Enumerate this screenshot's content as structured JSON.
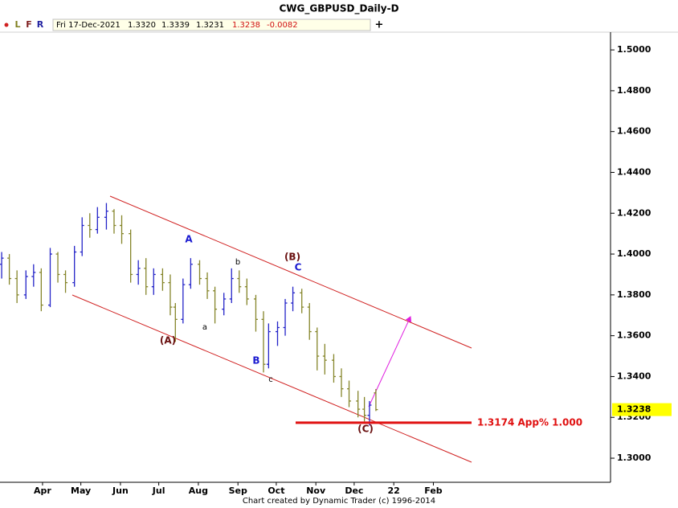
{
  "toolbar": {
    "letters": [
      "L",
      "F",
      "R"
    ],
    "date": "Fri 17-Dec-2021",
    "open": "1.3320",
    "high": "1.3339",
    "low": "1.3231",
    "close": "1.3238",
    "change": "-0.0082",
    "add": "+"
  },
  "footer": "Chart created by Dynamic Trader  (c) 1996-2014",
  "chart_data": {
    "type": "ohlc",
    "title": "CWG_GBPUSD_Daily-D",
    "up_color": "#2424c8",
    "down_color": "#85852a",
    "xlim": [
      56.7,
      534.7
    ],
    "ylim": [
      1.2882,
      1.5087
    ],
    "xticks": [
      {
        "value": 90,
        "label": "Apr"
      },
      {
        "value": 120,
        "label": "May"
      },
      {
        "value": 151,
        "label": "Jun"
      },
      {
        "value": 181,
        "label": "Jul"
      },
      {
        "value": 212,
        "label": "Aug"
      },
      {
        "value": 243,
        "label": "Sep"
      },
      {
        "value": 273,
        "label": "Oct"
      },
      {
        "value": 304,
        "label": "Nov"
      },
      {
        "value": 334,
        "label": "Dec"
      },
      {
        "value": 365,
        "label": "22"
      },
      {
        "value": 396,
        "label": "Feb"
      }
    ],
    "yticks": [
      {
        "value": 1.3,
        "label": "1.3000"
      },
      {
        "value": 1.32,
        "label": "1.3200"
      },
      {
        "value": 1.34,
        "label": "1.3400"
      },
      {
        "value": 1.36,
        "label": "1.3600"
      },
      {
        "value": 1.38,
        "label": "1.3800"
      },
      {
        "value": 1.4,
        "label": "1.4000"
      },
      {
        "value": 1.42,
        "label": "1.4200"
      },
      {
        "value": 1.44,
        "label": "1.4400"
      },
      {
        "value": 1.46,
        "label": "1.4600"
      },
      {
        "value": 1.48,
        "label": "1.4800"
      },
      {
        "value": 1.5,
        "label": "1.5000"
      }
    ],
    "x": [
      58,
      64,
      70,
      77,
      83,
      89,
      96,
      102,
      108,
      115,
      121,
      127,
      133,
      140,
      146,
      152,
      159,
      165,
      171,
      177,
      184,
      190,
      194,
      200,
      206,
      213,
      219,
      225,
      232,
      238,
      244,
      250,
      257,
      263,
      267,
      274,
      280,
      286,
      293,
      299,
      305,
      311,
      318,
      324,
      330,
      337,
      342,
      346,
      351
    ],
    "open": [
      1.395,
      1.398,
      1.388,
      1.38,
      1.389,
      1.391,
      1.375,
      1.4,
      1.39,
      1.386,
      1.401,
      1.414,
      1.412,
      1.418,
      1.421,
      1.414,
      1.41,
      1.39,
      1.393,
      1.384,
      1.39,
      1.386,
      1.374,
      1.368,
      1.385,
      1.395,
      1.388,
      1.382,
      1.373,
      1.378,
      1.388,
      1.384,
      1.378,
      1.368,
      1.346,
      1.362,
      1.364,
      1.376,
      1.381,
      1.374,
      1.362,
      1.35,
      1.348,
      1.34,
      1.334,
      1.328,
      1.324,
      1.321,
      1.332
    ],
    "high": [
      1.401,
      1.4,
      1.392,
      1.392,
      1.395,
      1.393,
      1.403,
      1.401,
      1.392,
      1.404,
      1.418,
      1.42,
      1.423,
      1.425,
      1.422,
      1.419,
      1.412,
      1.397,
      1.398,
      1.393,
      1.393,
      1.39,
      1.376,
      1.388,
      1.398,
      1.397,
      1.391,
      1.384,
      1.381,
      1.393,
      1.392,
      1.388,
      1.38,
      1.372,
      1.366,
      1.367,
      1.378,
      1.384,
      1.383,
      1.376,
      1.364,
      1.356,
      1.351,
      1.344,
      1.338,
      1.333,
      1.33,
      1.328,
      1.3339
    ],
    "low": [
      1.388,
      1.385,
      1.376,
      1.378,
      1.384,
      1.372,
      1.374,
      1.386,
      1.381,
      1.384,
      1.399,
      1.408,
      1.41,
      1.412,
      1.41,
      1.405,
      1.386,
      1.385,
      1.38,
      1.38,
      1.382,
      1.37,
      1.357,
      1.366,
      1.383,
      1.385,
      1.378,
      1.366,
      1.37,
      1.376,
      1.381,
      1.375,
      1.362,
      1.342,
      1.344,
      1.355,
      1.36,
      1.372,
      1.371,
      1.358,
      1.343,
      1.341,
      1.337,
      1.33,
      1.325,
      1.32,
      1.318,
      1.316,
      1.3231
    ],
    "close": [
      1.398,
      1.388,
      1.38,
      1.389,
      1.391,
      1.375,
      1.4,
      1.39,
      1.386,
      1.401,
      1.414,
      1.412,
      1.418,
      1.421,
      1.414,
      1.41,
      1.39,
      1.393,
      1.384,
      1.39,
      1.386,
      1.374,
      1.368,
      1.385,
      1.395,
      1.388,
      1.382,
      1.373,
      1.378,
      1.388,
      1.384,
      1.378,
      1.368,
      1.346,
      1.362,
      1.364,
      1.376,
      1.381,
      1.374,
      1.362,
      1.35,
      1.348,
      1.34,
      1.334,
      1.328,
      1.324,
      1.321,
      1.326,
      1.3238
    ],
    "last_price": {
      "value": 1.3238,
      "label": "1.3238"
    },
    "level": {
      "value": 1.3174,
      "label": "1.3174 App% 1.000"
    },
    "annotations": [
      "A",
      "b",
      "(B)",
      "C",
      "(A)",
      "a",
      "B",
      "c",
      "(C)"
    ]
  }
}
